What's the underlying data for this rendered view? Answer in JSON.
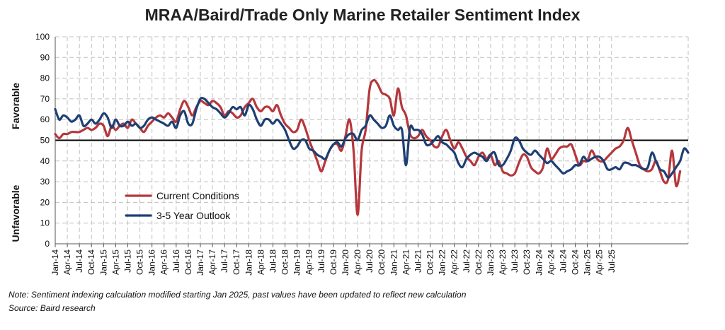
{
  "chart_data": {
    "type": "line",
    "title": "MRAA/Baird/Trade Only Marine Retailer Sentiment Index",
    "ylim": [
      0,
      100
    ],
    "y_ticks": [
      0,
      10,
      20,
      30,
      40,
      50,
      60,
      70,
      80,
      90,
      100
    ],
    "ylabel_upper": "Favorable",
    "ylabel_lower": "Unfavorable",
    "reference_line": 50,
    "grid": true,
    "legend_position": "left-center",
    "x_start": "Jan-14",
    "x_end": "Sep-25",
    "x_tick_labels": [
      "Jan-14",
      "Apr-14",
      "Jul-14",
      "Oct-14",
      "Jan-15",
      "Apr-15",
      "Jul-15",
      "Oct-15",
      "Jan-16",
      "Apr-16",
      "Jul-16",
      "Oct-16",
      "Jan-17",
      "Apr-17",
      "Jul-17",
      "Oct-17",
      "Jan-18",
      "Apr-18",
      "Jul-18",
      "Oct-18",
      "Jan-19",
      "Apr-19",
      "Jul-19",
      "Oct-19",
      "Jan-20",
      "Apr-20",
      "Jul-20",
      "Oct-20",
      "Jan-21",
      "Apr-21",
      "Jul-21",
      "Oct-21",
      "Jan-22",
      "Apr-22",
      "Jul-22",
      "Oct-22",
      "Jan-23",
      "Apr-23",
      "Jul-23",
      "Oct-23",
      "Jan-24",
      "Apr-24",
      "Jul-24",
      "Oct-24",
      "Jan-25",
      "Apr-25",
      "Jul-25"
    ],
    "series": [
      {
        "name": "Current Conditions",
        "color": "#b5373c",
        "values": [
          53,
          51,
          53,
          53,
          54,
          54,
          54,
          55,
          56,
          55,
          56,
          58,
          57,
          52,
          57,
          55,
          57,
          58,
          56,
          60,
          58,
          56,
          54,
          57,
          59,
          61,
          62,
          61,
          63,
          61,
          59,
          65,
          69,
          66,
          62,
          66,
          69,
          68,
          67,
          69,
          68,
          66,
          62,
          64,
          63,
          61,
          62,
          66,
          68,
          70,
          66,
          64,
          66,
          66,
          64,
          67,
          62,
          58,
          56,
          54,
          55,
          60,
          56,
          50,
          45,
          40,
          35,
          40,
          45,
          48,
          48,
          45,
          52,
          60,
          45,
          14,
          45,
          55,
          75,
          79,
          77,
          73,
          72,
          70,
          62,
          75,
          66,
          62,
          53,
          51,
          52,
          55,
          52,
          50,
          47,
          47,
          52,
          55,
          50,
          46,
          49,
          46,
          42,
          40,
          38,
          42,
          44,
          41,
          43,
          38,
          40,
          35,
          34,
          33,
          34,
          39,
          43,
          42,
          37,
          35,
          34,
          37,
          46,
          41,
          43,
          46,
          47,
          47,
          48,
          43,
          38,
          40,
          40,
          45,
          42,
          40,
          40,
          42,
          44,
          46,
          47,
          50,
          56,
          50,
          44,
          38,
          36,
          35,
          36,
          40,
          35,
          30,
          31,
          45,
          28,
          35
        ]
      },
      {
        "name": "3-5 Year Outlook",
        "color": "#1e3f73",
        "values": [
          65,
          60,
          62,
          61,
          59,
          60,
          62,
          57,
          58,
          60,
          58,
          60,
          63,
          61,
          56,
          60,
          57,
          57,
          59,
          57,
          58,
          56,
          57,
          60,
          61,
          60,
          59,
          58,
          57,
          59,
          56,
          62,
          64,
          58,
          58,
          65,
          70,
          70,
          68,
          66,
          65,
          63,
          61,
          63,
          66,
          65,
          66,
          62,
          67,
          65,
          60,
          57,
          60,
          60,
          58,
          60,
          58,
          55,
          50,
          46,
          47,
          50,
          50,
          46,
          45,
          43,
          42,
          41,
          45,
          48,
          49,
          47,
          51,
          53,
          53,
          50,
          55,
          57,
          62,
          60,
          58,
          56,
          57,
          62,
          57,
          55,
          55,
          38,
          56,
          55,
          55,
          53,
          48,
          48,
          50,
          52,
          49,
          48,
          46,
          44,
          39,
          37,
          41,
          43,
          44,
          43,
          42,
          40,
          43,
          44,
          38,
          38,
          41,
          45,
          51,
          50,
          46,
          44,
          43,
          45,
          43,
          41,
          39,
          40,
          38,
          36,
          34,
          35,
          36,
          38,
          38,
          42,
          40,
          41,
          42,
          42,
          40,
          36,
          36,
          37,
          36,
          39,
          39,
          38,
          38,
          37,
          36,
          37,
          44,
          40,
          36,
          35,
          32,
          34,
          37,
          40,
          46,
          44
        ]
      }
    ]
  },
  "note": "Note: Sentiment indexing calculation modified  starting Jan 2025, past values have been updated to reflect new calculation",
  "source": "Source: Baird research",
  "colors": {
    "grid": "#c0c0c0",
    "axis": "#555555",
    "reference": "#000000",
    "text": "#111111"
  }
}
